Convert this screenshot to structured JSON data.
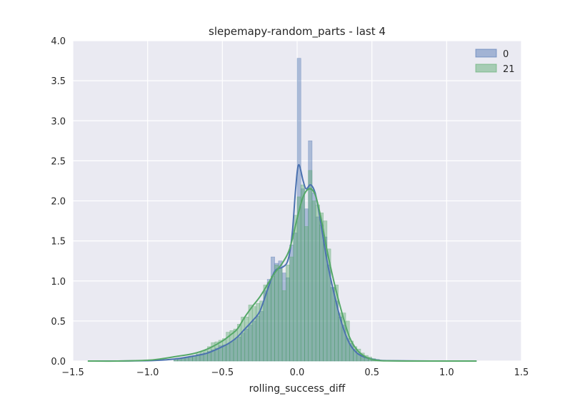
{
  "chart_data": {
    "type": "histogram",
    "title": "slepemapy-random_parts - last 4",
    "xlabel": "rolling_success_diff",
    "ylabel": "",
    "xlim": [
      -1.5,
      1.5
    ],
    "ylim": [
      0,
      4.0
    ],
    "xticks": [
      -1.5,
      -1.0,
      -0.5,
      0.0,
      0.5,
      1.0,
      1.5
    ],
    "xtick_labels": [
      "−1.5",
      "−1.0",
      "−0.5",
      "0.0",
      "0.5",
      "1.0",
      "1.5"
    ],
    "yticks": [
      0,
      0.5,
      1.0,
      1.5,
      2.0,
      2.5,
      3.0,
      3.5,
      4.0
    ],
    "ytick_labels": [
      "0.0",
      "0.5",
      "1.0",
      "1.5",
      "2.0",
      "2.5",
      "3.0",
      "3.5",
      "4.0"
    ],
    "grid": true,
    "legend_position": "top-right",
    "colors": {
      "background": "#EAEAF2",
      "grid": "#FFFFFF",
      "series_0": "#4C72B0",
      "series_21": "#55A868"
    },
    "bin_width": 0.025,
    "series": [
      {
        "name": "0",
        "color": "#4C72B0",
        "bins": [
          {
            "x0": -0.825,
            "v": 0.01
          },
          {
            "x0": -0.8,
            "v": 0.02
          },
          {
            "x0": -0.775,
            "v": 0.03
          },
          {
            "x0": -0.75,
            "v": 0.04
          },
          {
            "x0": -0.725,
            "v": 0.05
          },
          {
            "x0": -0.7,
            "v": 0.06
          },
          {
            "x0": -0.675,
            "v": 0.08
          },
          {
            "x0": -0.65,
            "v": 0.09
          },
          {
            "x0": -0.625,
            "v": 0.1
          },
          {
            "x0": -0.6,
            "v": 0.12
          },
          {
            "x0": -0.575,
            "v": 0.14
          },
          {
            "x0": -0.55,
            "v": 0.16
          },
          {
            "x0": -0.525,
            "v": 0.19
          },
          {
            "x0": -0.5,
            "v": 0.2
          },
          {
            "x0": -0.475,
            "v": 0.21
          },
          {
            "x0": -0.45,
            "v": 0.24
          },
          {
            "x0": -0.425,
            "v": 0.27
          },
          {
            "x0": -0.4,
            "v": 0.3
          },
          {
            "x0": -0.375,
            "v": 0.35
          },
          {
            "x0": -0.35,
            "v": 0.4
          },
          {
            "x0": -0.325,
            "v": 0.45
          },
          {
            "x0": -0.3,
            "v": 0.5
          },
          {
            "x0": -0.275,
            "v": 0.56
          },
          {
            "x0": -0.25,
            "v": 0.62
          },
          {
            "x0": -0.225,
            "v": 0.88
          },
          {
            "x0": -0.2,
            "v": 1.02
          },
          {
            "x0": -0.175,
            "v": 1.3
          },
          {
            "x0": -0.15,
            "v": 1.22
          },
          {
            "x0": -0.125,
            "v": 1.25
          },
          {
            "x0": -0.1,
            "v": 1.1
          },
          {
            "x0": -0.075,
            "v": 1.04
          },
          {
            "x0": -0.05,
            "v": 1.45
          },
          {
            "x0": -0.025,
            "v": 1.6
          },
          {
            "x0": 0.0,
            "v": 3.78
          },
          {
            "x0": 0.025,
            "v": 2.15
          },
          {
            "x0": 0.05,
            "v": 1.9
          },
          {
            "x0": 0.075,
            "v": 2.75
          },
          {
            "x0": 0.1,
            "v": 2.1
          },
          {
            "x0": 0.125,
            "v": 1.8
          },
          {
            "x0": 0.15,
            "v": 1.7
          },
          {
            "x0": 0.175,
            "v": 1.55
          },
          {
            "x0": 0.2,
            "v": 1.2
          },
          {
            "x0": 0.225,
            "v": 0.92
          },
          {
            "x0": 0.25,
            "v": 0.75
          },
          {
            "x0": 0.275,
            "v": 0.55
          },
          {
            "x0": 0.3,
            "v": 0.45
          },
          {
            "x0": 0.325,
            "v": 0.28
          },
          {
            "x0": 0.35,
            "v": 0.22
          },
          {
            "x0": 0.375,
            "v": 0.15
          },
          {
            "x0": 0.4,
            "v": 0.1
          },
          {
            "x0": 0.425,
            "v": 0.06
          },
          {
            "x0": 0.45,
            "v": 0.04
          },
          {
            "x0": 0.475,
            "v": 0.03
          },
          {
            "x0": 0.5,
            "v": 0.02
          },
          {
            "x0": 0.525,
            "v": 0.01
          }
        ],
        "kde": [
          [
            -1.4,
            0.0
          ],
          [
            -1.2,
            0.0
          ],
          [
            -1.0,
            0.004
          ],
          [
            -0.9,
            0.012
          ],
          [
            -0.8,
            0.03
          ],
          [
            -0.7,
            0.06
          ],
          [
            -0.6,
            0.1
          ],
          [
            -0.5,
            0.18
          ],
          [
            -0.45,
            0.23
          ],
          [
            -0.4,
            0.3
          ],
          [
            -0.35,
            0.4
          ],
          [
            -0.3,
            0.5
          ],
          [
            -0.25,
            0.62
          ],
          [
            -0.2,
            0.88
          ],
          [
            -0.15,
            1.12
          ],
          [
            -0.1,
            1.17
          ],
          [
            -0.07,
            1.22
          ],
          [
            -0.05,
            1.35
          ],
          [
            -0.03,
            1.65
          ],
          [
            -0.01,
            2.15
          ],
          [
            0.01,
            2.45
          ],
          [
            0.04,
            2.25
          ],
          [
            0.06,
            2.15
          ],
          [
            0.09,
            2.2
          ],
          [
            0.12,
            2.1
          ],
          [
            0.15,
            1.82
          ],
          [
            0.2,
            1.25
          ],
          [
            0.25,
            0.82
          ],
          [
            0.3,
            0.46
          ],
          [
            0.35,
            0.22
          ],
          [
            0.4,
            0.1
          ],
          [
            0.45,
            0.05
          ],
          [
            0.5,
            0.025
          ],
          [
            0.55,
            0.01
          ],
          [
            0.6,
            0.005
          ],
          [
            0.8,
            0.001
          ],
          [
            1.0,
            0.0
          ],
          [
            1.2,
            0.0
          ]
        ]
      },
      {
        "name": "21",
        "color": "#55A868",
        "bins": [
          {
            "x0": -0.825,
            "v": 0.02
          },
          {
            "x0": -0.8,
            "v": 0.03
          },
          {
            "x0": -0.775,
            "v": 0.04
          },
          {
            "x0": -0.75,
            "v": 0.05
          },
          {
            "x0": -0.725,
            "v": 0.06
          },
          {
            "x0": -0.7,
            "v": 0.07
          },
          {
            "x0": -0.675,
            "v": 0.09
          },
          {
            "x0": -0.65,
            "v": 0.11
          },
          {
            "x0": -0.625,
            "v": 0.13
          },
          {
            "x0": -0.6,
            "v": 0.18
          },
          {
            "x0": -0.575,
            "v": 0.23
          },
          {
            "x0": -0.55,
            "v": 0.24
          },
          {
            "x0": -0.525,
            "v": 0.26
          },
          {
            "x0": -0.5,
            "v": 0.28
          },
          {
            "x0": -0.475,
            "v": 0.36
          },
          {
            "x0": -0.45,
            "v": 0.38
          },
          {
            "x0": -0.425,
            "v": 0.4
          },
          {
            "x0": -0.4,
            "v": 0.46
          },
          {
            "x0": -0.375,
            "v": 0.55
          },
          {
            "x0": -0.35,
            "v": 0.55
          },
          {
            "x0": -0.325,
            "v": 0.7
          },
          {
            "x0": -0.3,
            "v": 0.68
          },
          {
            "x0": -0.275,
            "v": 0.72
          },
          {
            "x0": -0.25,
            "v": 0.75
          },
          {
            "x0": -0.225,
            "v": 0.95
          },
          {
            "x0": -0.2,
            "v": 0.98
          },
          {
            "x0": -0.175,
            "v": 1.06
          },
          {
            "x0": -0.15,
            "v": 1.2
          },
          {
            "x0": -0.125,
            "v": 1.16
          },
          {
            "x0": -0.1,
            "v": 0.88
          },
          {
            "x0": -0.075,
            "v": 1.2
          },
          {
            "x0": -0.05,
            "v": 1.3
          },
          {
            "x0": -0.025,
            "v": 1.82
          },
          {
            "x0": 0.0,
            "v": 2.05
          },
          {
            "x0": 0.025,
            "v": 2.2
          },
          {
            "x0": 0.05,
            "v": 1.68
          },
          {
            "x0": 0.075,
            "v": 2.38
          },
          {
            "x0": 0.1,
            "v": 2.0
          },
          {
            "x0": 0.125,
            "v": 1.95
          },
          {
            "x0": 0.15,
            "v": 1.85
          },
          {
            "x0": 0.175,
            "v": 1.75
          },
          {
            "x0": 0.2,
            "v": 1.4
          },
          {
            "x0": 0.225,
            "v": 0.92
          },
          {
            "x0": 0.25,
            "v": 0.95
          },
          {
            "x0": 0.275,
            "v": 0.6
          },
          {
            "x0": 0.3,
            "v": 0.6
          },
          {
            "x0": 0.325,
            "v": 0.5
          },
          {
            "x0": 0.35,
            "v": 0.25
          },
          {
            "x0": 0.375,
            "v": 0.18
          },
          {
            "x0": 0.4,
            "v": 0.15
          },
          {
            "x0": 0.425,
            "v": 0.1
          },
          {
            "x0": 0.45,
            "v": 0.07
          },
          {
            "x0": 0.475,
            "v": 0.05
          },
          {
            "x0": 0.5,
            "v": 0.03
          },
          {
            "x0": 0.525,
            "v": 0.02
          }
        ],
        "kde": [
          [
            -1.4,
            0.0
          ],
          [
            -1.2,
            0.0
          ],
          [
            -1.0,
            0.01
          ],
          [
            -0.9,
            0.03
          ],
          [
            -0.8,
            0.06
          ],
          [
            -0.7,
            0.09
          ],
          [
            -0.6,
            0.15
          ],
          [
            -0.5,
            0.25
          ],
          [
            -0.45,
            0.32
          ],
          [
            -0.4,
            0.4
          ],
          [
            -0.35,
            0.55
          ],
          [
            -0.3,
            0.68
          ],
          [
            -0.25,
            0.8
          ],
          [
            -0.2,
            0.95
          ],
          [
            -0.15,
            1.1
          ],
          [
            -0.1,
            1.22
          ],
          [
            -0.05,
            1.4
          ],
          [
            0.0,
            1.78
          ],
          [
            0.04,
            2.05
          ],
          [
            0.08,
            2.15
          ],
          [
            0.12,
            2.08
          ],
          [
            0.16,
            1.78
          ],
          [
            0.2,
            1.38
          ],
          [
            0.25,
            0.96
          ],
          [
            0.3,
            0.6
          ],
          [
            0.35,
            0.3
          ],
          [
            0.4,
            0.14
          ],
          [
            0.45,
            0.06
          ],
          [
            0.5,
            0.02
          ],
          [
            0.55,
            0.005
          ],
          [
            0.6,
            0.002
          ],
          [
            0.8,
            0.0
          ],
          [
            1.0,
            0.0
          ],
          [
            1.2,
            0.0
          ]
        ]
      }
    ]
  }
}
